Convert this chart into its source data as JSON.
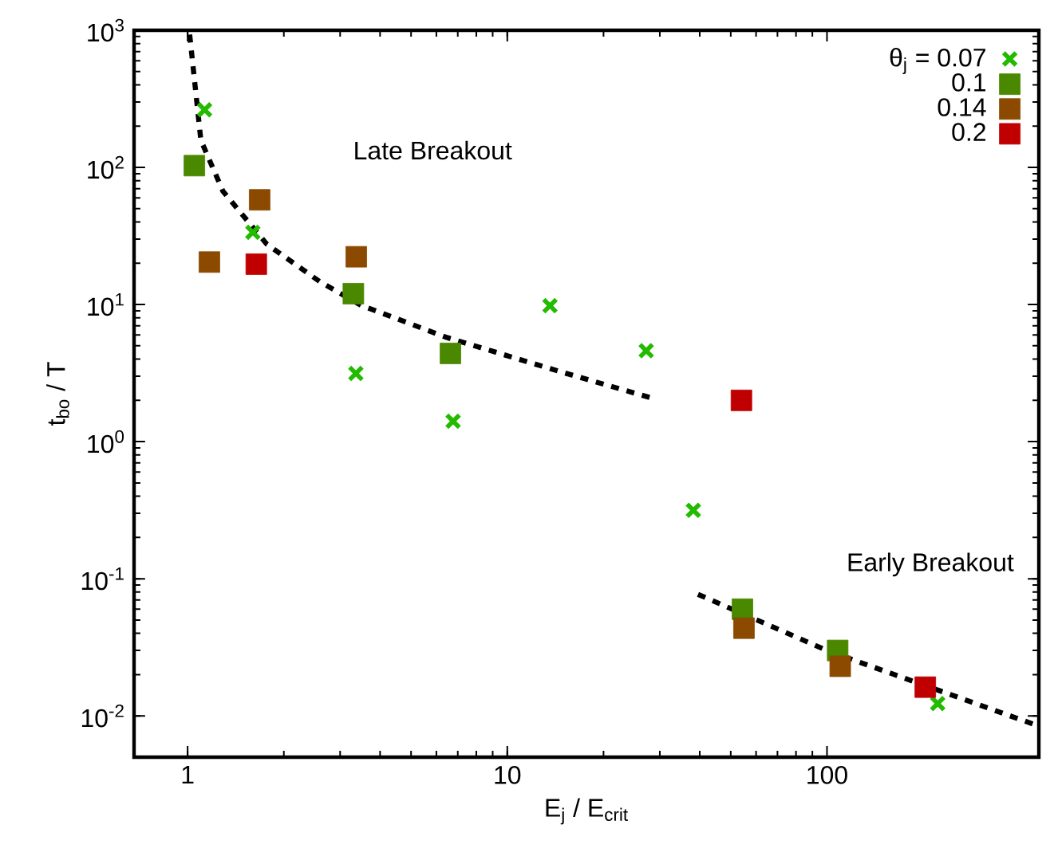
{
  "chart_data": {
    "type": "scatter",
    "xlabel": "E$_{j}$ / E$_{crit}$",
    "ylabel": "t$_{bo}$ / T",
    "log": "xy",
    "legend": "top right",
    "grid": false,
    "xlim": [
      0.68,
      460
    ],
    "ylim": [
      0.005,
      1000
    ],
    "xticks": [
      1,
      10,
      100
    ],
    "yticks": [
      {
        "value": 0.01,
        "label": "10$^{-2}$"
      },
      {
        "value": 0.1,
        "label": "10$^{-1}$"
      },
      {
        "value": 1,
        "label": "10$^{0}$"
      },
      {
        "value": 10,
        "label": "10$^{1}$"
      },
      {
        "value": 100,
        "label": "10$^{2}$"
      },
      {
        "value": 1000,
        "label": "10$^{3}$"
      }
    ],
    "annotations": [
      "Late Breakout",
      "Early Breakout"
    ],
    "series": [
      {
        "type": "line",
        "color": "#000000",
        "marker": "none",
        "line_style": "dotted",
        "x": [
          1.015,
          1.1,
          1.29,
          1.77,
          2.59,
          3.51,
          6.47,
          14.9,
          28.7
        ],
        "values": [
          930,
          158,
          67,
          27.5,
          14.7,
          9.8,
          5.75,
          3.2,
          2.06
        ]
      },
      {
        "type": "line",
        "color": "#000000",
        "marker": "none",
        "line_style": "dotted",
        "x": [
          39.5,
          101,
          455
        ],
        "values": [
          0.077,
          0.0297,
          0.0085
        ]
      },
      {
        "name": "θ$_{j}$ = 0.07",
        "color": "#22bb00",
        "marker": "cross",
        "x": [
          1.13,
          1.6,
          3.36,
          6.77,
          13.6,
          27.2,
          38.2,
          222
        ],
        "values": [
          263,
          33.6,
          3.14,
          1.41,
          9.8,
          4.6,
          0.316,
          0.0123
        ]
      },
      {
        "name": "0.1",
        "color": "#4a8800",
        "marker": "square",
        "x": [
          1.05,
          3.3,
          6.64,
          54.4,
          108
        ],
        "values": [
          103,
          12.0,
          4.4,
          0.06,
          0.03
        ]
      },
      {
        "name": "0.14",
        "color": "#8b4a00",
        "marker": "square",
        "x": [
          1.17,
          1.68,
          3.37,
          55,
          110
        ],
        "values": [
          20.4,
          58,
          22.3,
          0.0436,
          0.023
        ]
      },
      {
        "name": "0.2",
        "color": "#c00000",
        "marker": "square",
        "x": [
          1.64,
          54,
          203
        ],
        "values": [
          19.7,
          2.0,
          0.0162
        ]
      }
    ]
  }
}
